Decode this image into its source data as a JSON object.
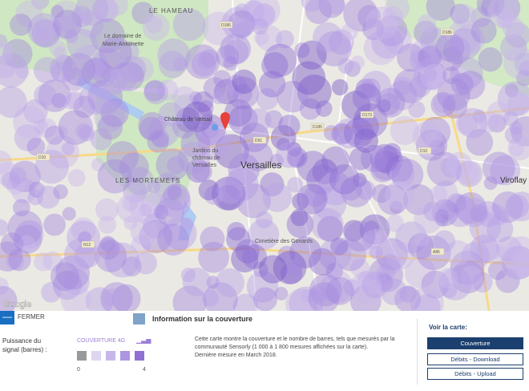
{
  "map": {
    "labels": {
      "le_hameau": "LE HAMEAU",
      "domaine": [
        "Le domaine de",
        "Marie-Antoinette"
      ],
      "chateau": "Château de Versail",
      "jardins": [
        "Jardins du",
        "château de",
        "Versailles"
      ],
      "mortemets": "LES MORTEMETS",
      "versailles": "Versailles",
      "cimetiere": "Cimetière des Gonards",
      "viroflay": "Viroflay",
      "google": "Google",
      "roads": [
        "D10",
        "D186",
        "D91",
        "D185",
        "D173",
        "D10",
        "N12",
        "A86",
        "D186"
      ]
    }
  },
  "panel": {
    "close": "FERMER",
    "title": "Information sur la couverture",
    "signal_label": [
      "Puissance du",
      "signal (barres) :"
    ],
    "legend_title": "COUVERTURE 4G",
    "scale_min": "0",
    "scale_max": "4",
    "description": [
      "Cette carte montre la couverture et le nombre de barres, tels que mesurés par la",
      "communauté Sensorly (1 000 à 1 800 mesures affichées sur la carte).",
      "Dernière mesure en March 2018."
    ],
    "view_title": "Voir la carte:",
    "buttons": [
      "Couverture",
      "Débits - Download",
      "Débits - Upload"
    ]
  }
}
